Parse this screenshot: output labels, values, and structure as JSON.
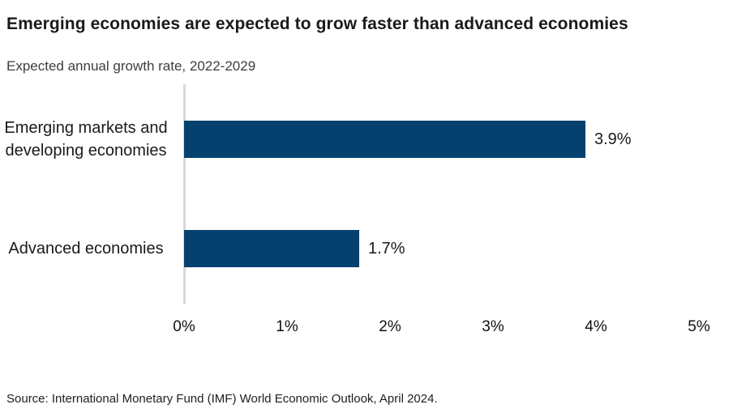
{
  "chart_data": {
    "type": "bar",
    "orientation": "horizontal",
    "title": "Emerging economies are expected to grow faster than advanced economies",
    "subtitle": "Expected annual growth rate, 2022-2029",
    "categories": [
      "Emerging markets and developing economies",
      "Advanced economies"
    ],
    "category_lines": [
      [
        "Emerging markets and",
        "developing economies"
      ],
      [
        "Advanced economies"
      ]
    ],
    "values": [
      3.9,
      1.7
    ],
    "value_labels": [
      "3.9%",
      "1.7%"
    ],
    "x_ticks": [
      "0%",
      "1%",
      "2%",
      "3%",
      "4%",
      "5%"
    ],
    "xlim": [
      0,
      5
    ],
    "grid": "off",
    "legend": "none",
    "bar_color": "#04416f",
    "axis_line_color": "#d9d9d9",
    "source": "Source: International Monetary Fund (IMF) World Economic Outlook, April 2024."
  }
}
